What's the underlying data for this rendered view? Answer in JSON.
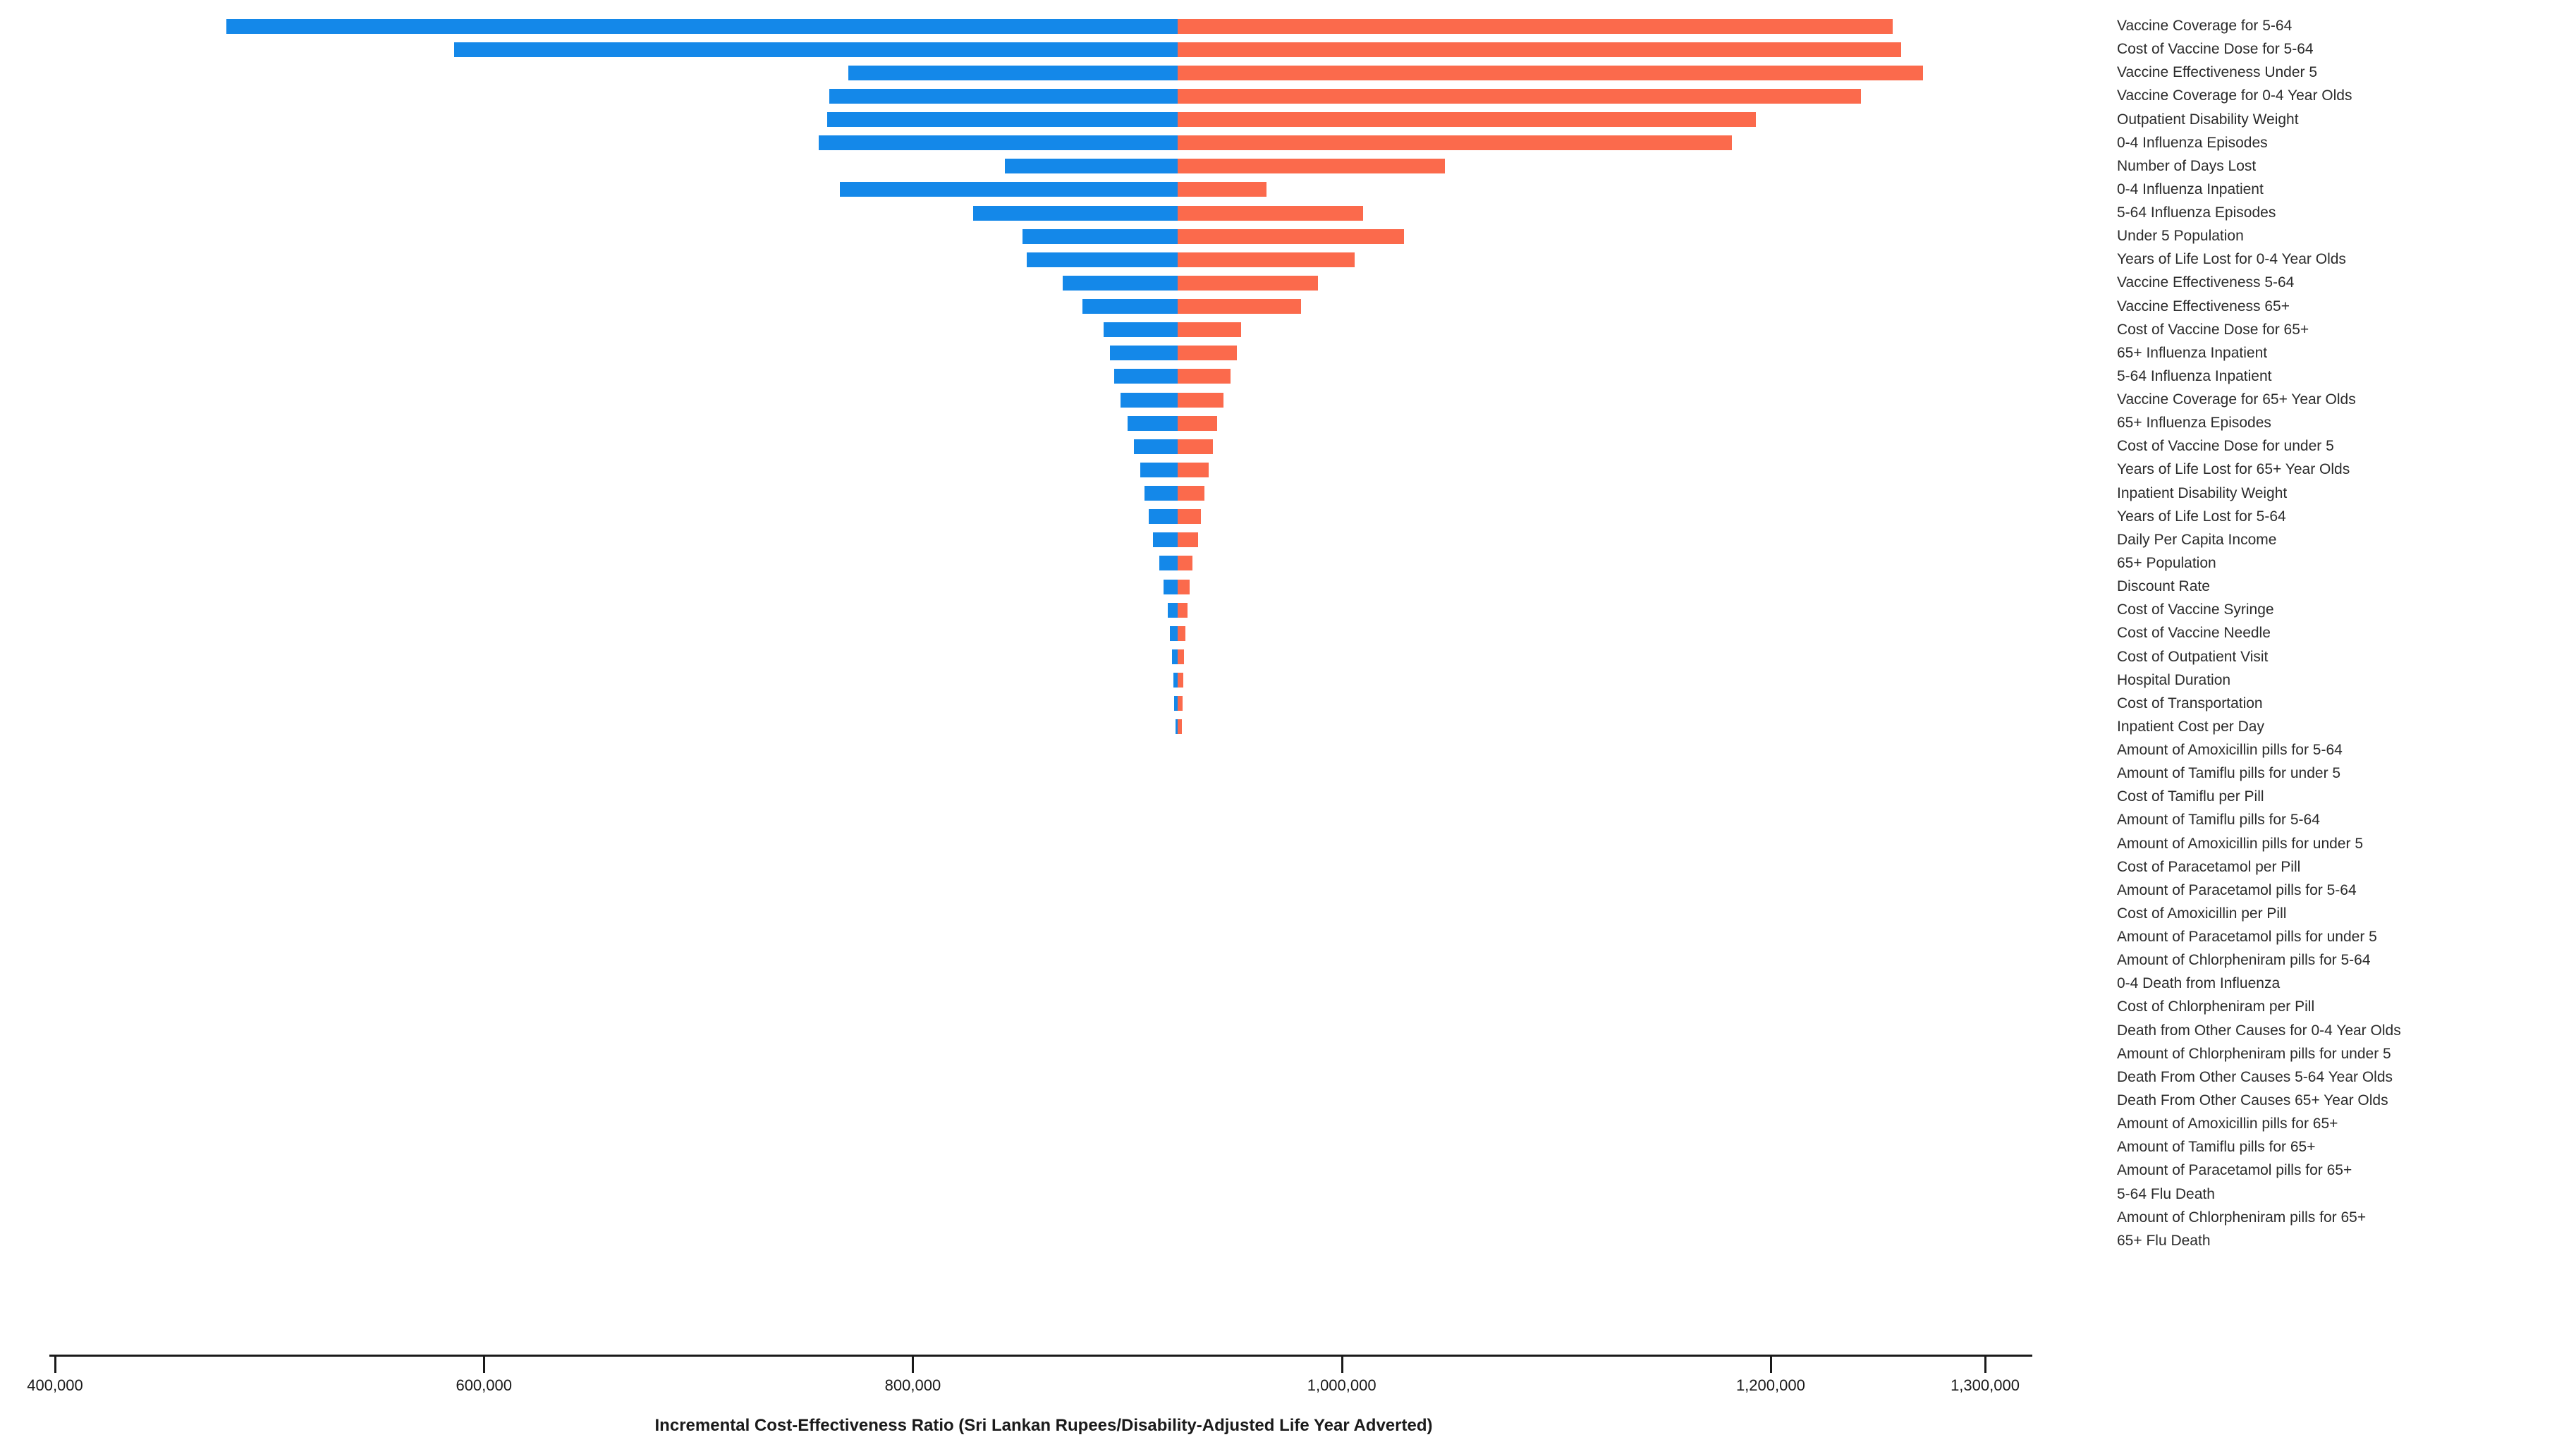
{
  "chart_data": {
    "type": "bar",
    "subtype": "tornado",
    "title": "",
    "xlabel": "Incremental Cost-Effectiveness Ratio (Sri Lankan Rupees/Disability-Adjusted Life Year Adverted)",
    "ylabel": "",
    "grid": false,
    "legend_position": "none",
    "base_value": 923500,
    "axis": {
      "min": 400000,
      "max": 1321000,
      "ticks": [
        {
          "value": 400000,
          "label": "400,000"
        },
        {
          "value": 600000,
          "label": "600,000"
        },
        {
          "value": 800000,
          "label": "800,000"
        },
        {
          "value": 1000000,
          "label": "1,000,000"
        },
        {
          "value": 1200000,
          "label": "1,200,000"
        },
        {
          "value": 1300000,
          "label": "1,300,000"
        }
      ]
    },
    "colors": {
      "low": "#1488e9",
      "high": "#fb6a4c"
    },
    "parameters": [
      {
        "label": "Vaccine Coverage for 5-64",
        "low": 480000,
        "high": 1257000
      },
      {
        "label": "Cost of Vaccine Dose for 5-64",
        "low": 586000,
        "high": 1261000
      },
      {
        "label": "Vaccine Effectiveness Under 5",
        "low": 770000,
        "high": 1271000
      },
      {
        "label": "Vaccine Coverage for 0-4 Year Olds",
        "low": 761000,
        "high": 1242000
      },
      {
        "label": "Outpatient Disability Weight",
        "low": 760000,
        "high": 1193000
      },
      {
        "label": "0-4 Influenza Episodes",
        "low": 756000,
        "high": 1182000
      },
      {
        "label": "Number of Days Lost",
        "low": 843000,
        "high": 1048000
      },
      {
        "label": "0-4 Influenza Inpatient",
        "low": 766000,
        "high": 965000
      },
      {
        "label": "5-64 Influenza Episodes",
        "low": 828000,
        "high": 1010000
      },
      {
        "label": "Under 5 Population",
        "low": 851000,
        "high": 1029000
      },
      {
        "label": "Years of Life Lost for 0-4 Year Olds",
        "low": 853000,
        "high": 1006000
      },
      {
        "label": "Vaccine Effectiveness 5-64",
        "low": 870000,
        "high": 989000
      },
      {
        "label": "Vaccine Effectiveness 65+",
        "low": 879000,
        "high": 981000
      },
      {
        "label": "Cost of Vaccine Dose for 65+",
        "low": 889000,
        "high": 953000
      },
      {
        "label": "65+ Influenza Inpatient",
        "low": 892000,
        "high": 951000
      },
      {
        "label": "5-64 Influenza Inpatient",
        "low": 894000,
        "high": 948000
      },
      {
        "label": "Vaccine Coverage for 65+ Year Olds",
        "low": 897000,
        "high": 945000
      },
      {
        "label": "65+ Influenza Episodes",
        "low": 900000,
        "high": 942000
      },
      {
        "label": "Cost of Vaccine Dose for under 5",
        "low": 903000,
        "high": 940000
      },
      {
        "label": "Years of Life Lost for 65+ Year Olds",
        "low": 906000,
        "high": 938000
      },
      {
        "label": "Inpatient Disability Weight",
        "low": 908000,
        "high": 936000
      },
      {
        "label": "Years of Life Lost for 5-64",
        "low": 910000,
        "high": 934500
      },
      {
        "label": "Daily Per Capita Income",
        "low": 912000,
        "high": 933000
      },
      {
        "label": "65+ Population",
        "low": 915000,
        "high": 930500
      },
      {
        "label": "Discount Rate",
        "low": 917000,
        "high": 929000
      },
      {
        "label": "Cost of Vaccine Syringe",
        "low": 919000,
        "high": 928000
      },
      {
        "label": "Cost of Vaccine Needle",
        "low": 920000,
        "high": 927200
      },
      {
        "label": "Cost of Outpatient Visit",
        "low": 920800,
        "high": 926600
      },
      {
        "label": "Hospital Duration",
        "low": 921400,
        "high": 926200
      },
      {
        "label": "Cost of Transportation",
        "low": 922000,
        "high": 925800
      },
      {
        "label": "Inpatient Cost per Day",
        "low": 922400,
        "high": 925400
      },
      {
        "label": "Amount of Amoxicillin pills for 5-64",
        "low": 923500,
        "high": 923500
      },
      {
        "label": "Amount of Tamiflu pills for under 5",
        "low": 923500,
        "high": 923500
      },
      {
        "label": "Cost of Tamiflu per Pill",
        "low": 923500,
        "high": 923500
      },
      {
        "label": "Amount of Tamiflu pills for 5-64",
        "low": 923500,
        "high": 923500
      },
      {
        "label": "Amount of Amoxicillin pills for under 5",
        "low": 923500,
        "high": 923500
      },
      {
        "label": "Cost of Paracetamol per Pill",
        "low": 923500,
        "high": 923500
      },
      {
        "label": "Amount of Paracetamol pills for 5-64",
        "low": 923500,
        "high": 923500
      },
      {
        "label": "Cost of Amoxicillin per Pill",
        "low": 923500,
        "high": 923500
      },
      {
        "label": "Amount of Paracetamol pills for under 5",
        "low": 923500,
        "high": 923500
      },
      {
        "label": "Amount of Chlorpheniram pills for 5-64",
        "low": 923500,
        "high": 923500
      },
      {
        "label": "0-4 Death from Influenza",
        "low": 923500,
        "high": 923500
      },
      {
        "label": "Cost of Chlorpheniram per Pill",
        "low": 923500,
        "high": 923500
      },
      {
        "label": "Death from Other Causes for 0-4 Year Olds",
        "low": 923500,
        "high": 923500
      },
      {
        "label": "Amount of Chlorpheniram pills for under 5",
        "low": 923500,
        "high": 923500
      },
      {
        "label": "Death From Other Causes 5-64 Year Olds",
        "low": 923500,
        "high": 923500
      },
      {
        "label": "Death From Other Causes 65+ Year Olds",
        "low": 923500,
        "high": 923500
      },
      {
        "label": "Amount of Amoxicillin pills for 65+",
        "low": 923500,
        "high": 923500
      },
      {
        "label": "Amount of Tamiflu pills for 65+",
        "low": 923500,
        "high": 923500
      },
      {
        "label": "Amount of Paracetamol pills for 65+",
        "low": 923500,
        "high": 923500
      },
      {
        "label": "5-64 Flu Death",
        "low": 923500,
        "high": 923500
      },
      {
        "label": "Amount of Chlorpheniram pills for 65+",
        "low": 923500,
        "high": 923500
      },
      {
        "label": "65+ Flu Death",
        "low": 923500,
        "high": 923500
      }
    ]
  }
}
